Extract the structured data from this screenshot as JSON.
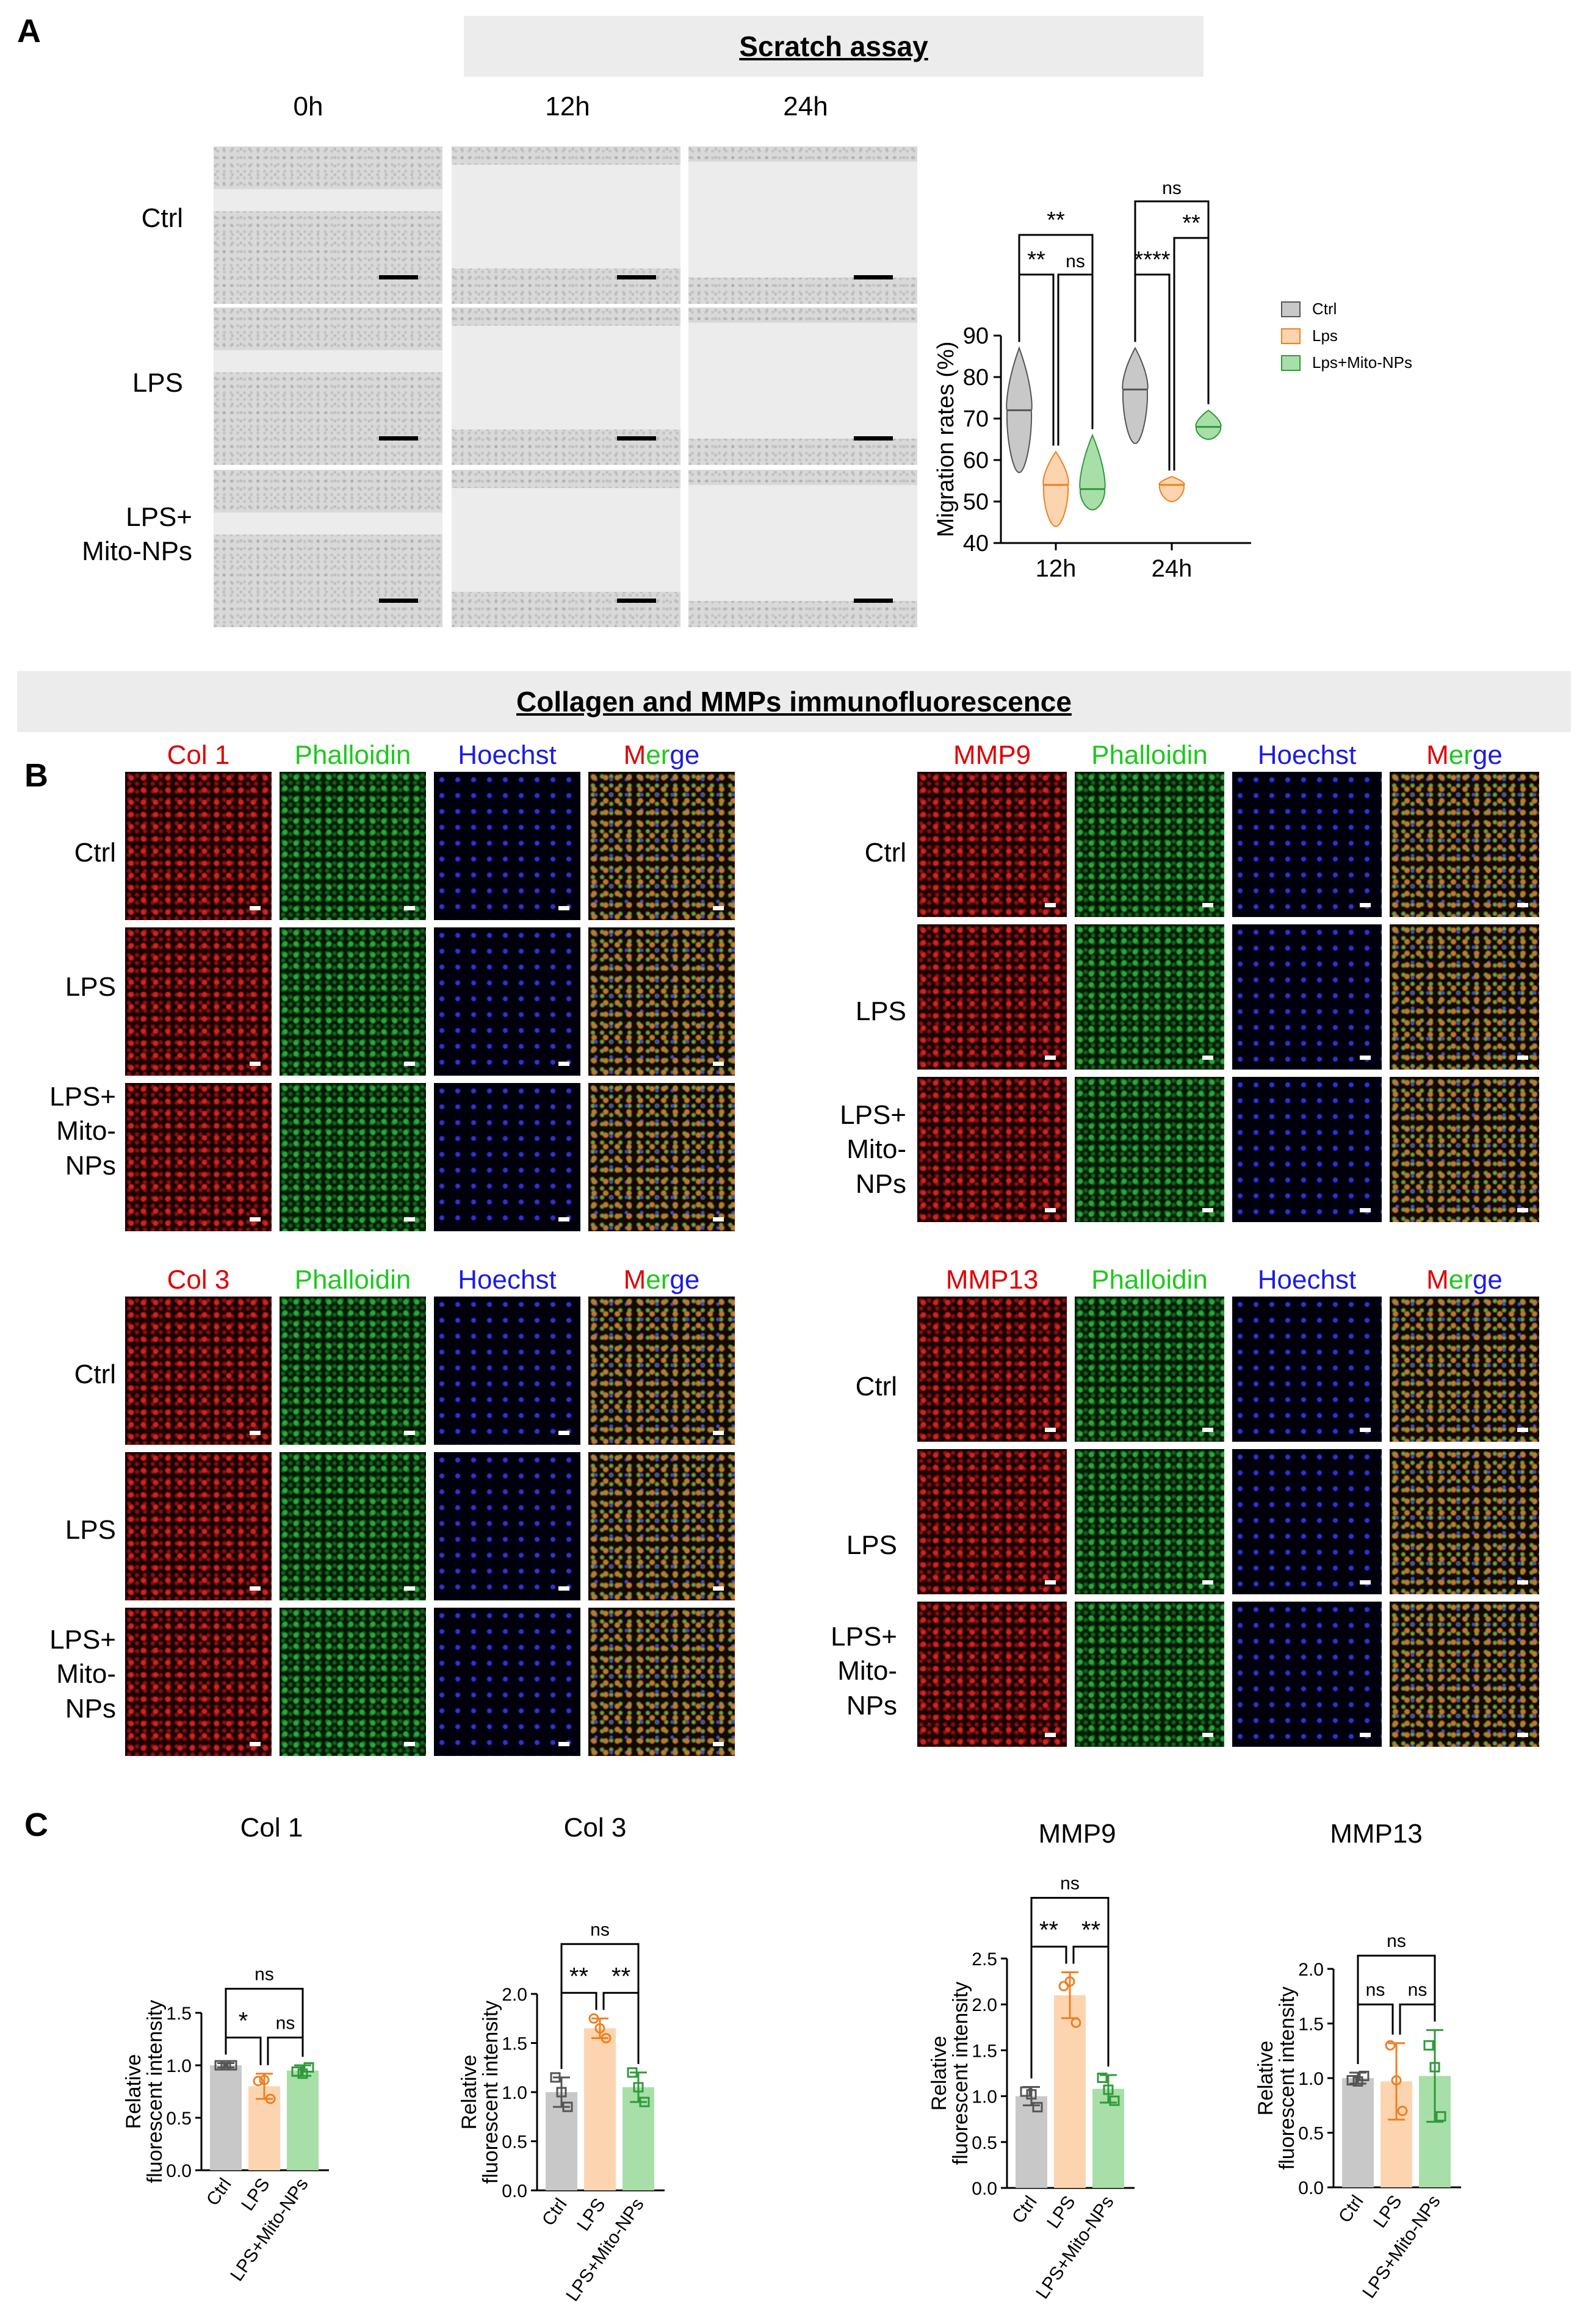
{
  "panel_a": {
    "letter": "A",
    "banner": "Scratch assay",
    "timepoints": [
      "0h",
      "12h",
      "24h"
    ],
    "groups": [
      "Ctrl",
      "LPS",
      "LPS+\nMito-NPs"
    ]
  },
  "panel_b": {
    "letter": "B",
    "banner": "Collagen and MMPs immunofluorescence",
    "blocks": [
      {
        "marker": "Col 1",
        "marker_color": "#e00000"
      },
      {
        "marker": "MMP9",
        "marker_color": "#e00000"
      },
      {
        "marker": "Col 3",
        "marker_color": "#e00000"
      },
      {
        "marker": "MMP13",
        "marker_color": "#e00000"
      }
    ],
    "channels": {
      "phalloidin": "Phalloidin",
      "hoechst": "Hoechst",
      "merge_m": "M",
      "merge_er": "er",
      "merge_ge": "ge"
    },
    "groups_short": [
      "Ctrl",
      "LPS",
      "LPS+\nMito-\nNPs"
    ],
    "groups_long": [
      "Ctrl",
      "LPS",
      "LPS+\nMito-\nNPs"
    ]
  },
  "panel_c": {
    "letter": "C"
  },
  "colors": {
    "ctrl": "#c8c8c8",
    "lps": "#fcd5b0",
    "mito": "#a8dfa8",
    "ctrl_edge": "#555555",
    "lps_edge": "#f07f20",
    "mito_edge": "#2e9b3a"
  },
  "chart_data": [
    {
      "type": "violin",
      "panel": "A",
      "ylabel": "Migration rates (%)",
      "ylim": [
        40,
        90
      ],
      "yticks": [
        40,
        50,
        60,
        70,
        80,
        90
      ],
      "categories": [
        "12h",
        "24h"
      ],
      "legend": [
        "Ctrl",
        "Lps",
        "Lps+Mito-NPs"
      ],
      "legend_position": "right",
      "series": [
        {
          "name": "Ctrl",
          "median": [
            72,
            77
          ],
          "range": [
            [
              57,
              87
            ],
            [
              64,
              87
            ]
          ]
        },
        {
          "name": "Lps",
          "median": [
            54,
            54
          ],
          "range": [
            [
              44,
              62
            ],
            [
              50,
              56
            ]
          ]
        },
        {
          "name": "Lps+Mito-NPs",
          "median": [
            53,
            68
          ],
          "range": [
            [
              48,
              66
            ],
            [
              65,
              72
            ]
          ]
        }
      ],
      "significance": [
        {
          "group": "12h",
          "pair": [
            "Ctrl",
            "Lps"
          ],
          "label": "**"
        },
        {
          "group": "12h",
          "pair": [
            "Lps",
            "Lps+Mito-NPs"
          ],
          "label": "ns"
        },
        {
          "group": "12h",
          "pair": [
            "Ctrl",
            "Lps+Mito-NPs"
          ],
          "label": "**"
        },
        {
          "group": "24h",
          "pair": [
            "Ctrl",
            "Lps"
          ],
          "label": "****"
        },
        {
          "group": "24h",
          "pair": [
            "Lps",
            "Lps+Mito-NPs"
          ],
          "label": "**"
        },
        {
          "group": "24h",
          "pair": [
            "Ctrl",
            "Lps+Mito-NPs"
          ],
          "label": "ns"
        }
      ]
    },
    {
      "type": "bar",
      "panel": "C",
      "title": "Col 1",
      "ylabel": [
        "Relative",
        "fluorescent intensity"
      ],
      "categories": [
        "Ctrl",
        "LPS",
        "LPS+Mito-NPs"
      ],
      "values": [
        1.0,
        0.8,
        0.95
      ],
      "errors": [
        0.02,
        0.12,
        0.05
      ],
      "points": [
        [
          1.0,
          1.0,
          1.0
        ],
        [
          0.85,
          0.68,
          0.86
        ],
        [
          0.94,
          0.98,
          0.92
        ]
      ],
      "ylim": [
        0,
        1.5
      ],
      "yticks": [
        0.0,
        0.5,
        1.0,
        1.5
      ],
      "significance": [
        {
          "pair": [
            "Ctrl",
            "LPS"
          ],
          "label": "*"
        },
        {
          "pair": [
            "LPS",
            "LPS+Mito-NPs"
          ],
          "label": "ns"
        },
        {
          "pair": [
            "Ctrl",
            "LPS+Mito-NPs"
          ],
          "label": "ns"
        }
      ]
    },
    {
      "type": "bar",
      "panel": "C",
      "title": "Col 3",
      "ylabel": [
        "Relative",
        "fluorescent intensity"
      ],
      "categories": [
        "Ctrl",
        "LPS",
        "LPS+Mito-NPs"
      ],
      "values": [
        1.0,
        1.65,
        1.05
      ],
      "errors": [
        0.15,
        0.1,
        0.15
      ],
      "points": [
        [
          1.15,
          0.85,
          1.0
        ],
        [
          1.75,
          1.55,
          1.65
        ],
        [
          1.2,
          0.9,
          1.05
        ]
      ],
      "ylim": [
        0,
        2.0
      ],
      "yticks": [
        0.0,
        0.5,
        1.0,
        1.5,
        2.0
      ],
      "significance": [
        {
          "pair": [
            "Ctrl",
            "LPS"
          ],
          "label": "**"
        },
        {
          "pair": [
            "LPS",
            "LPS+Mito-NPs"
          ],
          "label": "**"
        },
        {
          "pair": [
            "Ctrl",
            "LPS+Mito-NPs"
          ],
          "label": "ns"
        }
      ]
    },
    {
      "type": "bar",
      "panel": "C",
      "title": "MMP9",
      "ylabel": [
        "Relative",
        "fluorescent intensity"
      ],
      "categories": [
        "Ctrl",
        "LPS",
        "LPS+Mito-NPs"
      ],
      "values": [
        1.0,
        2.1,
        1.08
      ],
      "errors": [
        0.1,
        0.25,
        0.15
      ],
      "points": [
        [
          1.05,
          0.88,
          1.02
        ],
        [
          2.2,
          1.8,
          2.25
        ],
        [
          1.2,
          0.95,
          1.07
        ]
      ],
      "ylim": [
        0,
        2.5
      ],
      "yticks": [
        0.0,
        0.5,
        1.0,
        1.5,
        2.0,
        2.5
      ],
      "significance": [
        {
          "pair": [
            "Ctrl",
            "LPS"
          ],
          "label": "**"
        },
        {
          "pair": [
            "LPS",
            "LPS+Mito-NPs"
          ],
          "label": "**"
        },
        {
          "pair": [
            "Ctrl",
            "LPS+Mito-NPs"
          ],
          "label": "ns"
        }
      ]
    },
    {
      "type": "bar",
      "panel": "C",
      "title": "MMP13",
      "ylabel": [
        "Relative",
        "fluorescent intensity"
      ],
      "categories": [
        "Ctrl",
        "LPS",
        "LPS+Mito-NPs"
      ],
      "values": [
        1.0,
        0.97,
        1.02
      ],
      "errors": [
        0.05,
        0.35,
        0.42
      ],
      "points": [
        [
          0.98,
          1.02,
          0.97
        ],
        [
          1.3,
          0.7,
          0.98
        ],
        [
          1.3,
          0.65,
          1.1
        ]
      ],
      "ylim": [
        0,
        2.0
      ],
      "yticks": [
        0.0,
        0.5,
        1.0,
        1.5,
        2.0
      ],
      "significance": [
        {
          "pair": [
            "Ctrl",
            "LPS"
          ],
          "label": "ns"
        },
        {
          "pair": [
            "LPS",
            "LPS+Mito-NPs"
          ],
          "label": "ns"
        },
        {
          "pair": [
            "Ctrl",
            "LPS+Mito-NPs"
          ],
          "label": "ns"
        }
      ]
    }
  ]
}
